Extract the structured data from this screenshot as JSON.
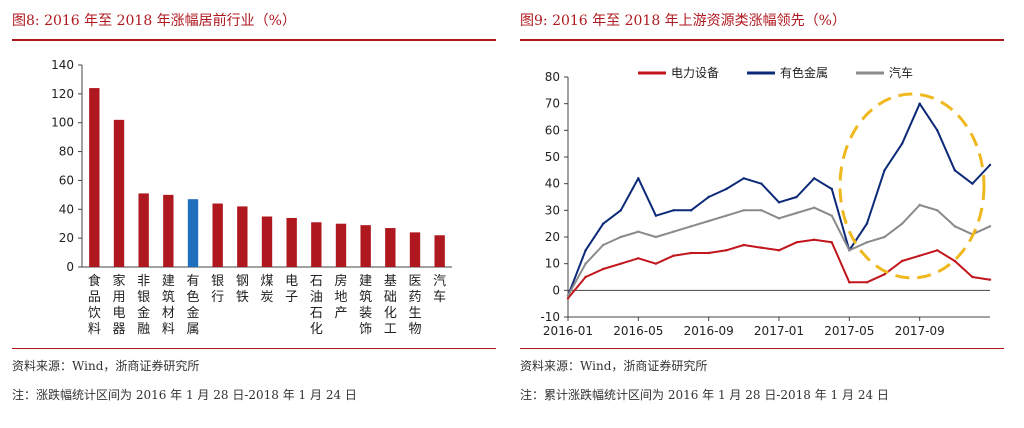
{
  "left": {
    "title": "图8:  2016 年至 2018 年涨幅居前行业（%）",
    "source": "资料来源：Wind，浙商证券研究所",
    "note": "注：涨跌幅统计区间为 2016 年 1 月 28 日-2018 年 1 月 24 日",
    "colors": {
      "bar": "#b0181f",
      "highlight": "#1f6fbf"
    }
  },
  "right": {
    "title": "图9:  2016 年至 2018 年上游资源类涨幅领先（%）",
    "source": "资料来源：Wind，浙商证券研究所",
    "note": "注：累计涨跌幅统计区间为 2016 年 1 月 28 日-2018 年 1 月 24 日",
    "annotation": "dashed-yellow-ellipse-highlight"
  },
  "chart_data": [
    {
      "type": "bar",
      "categories": [
        "食品饮料",
        "家用电器",
        "非银金融",
        "建筑材料",
        "有色金属",
        "银行",
        "钢铁",
        "煤炭",
        "电子",
        "石油石化",
        "房地产",
        "建筑装饰",
        "基础化工",
        "医药生物",
        "汽车"
      ],
      "values": [
        124,
        102,
        51,
        50,
        47,
        44,
        42,
        35,
        34,
        31,
        30,
        29,
        27,
        24,
        22
      ],
      "highlight": "有色金属",
      "ylim": [
        0,
        140
      ],
      "yticks": [
        "0",
        "20",
        "40",
        "60",
        "80",
        "100",
        "120",
        "140"
      ],
      "grid": false,
      "legend": "none"
    },
    {
      "type": "line",
      "x": [
        "2016-01",
        "2016-02",
        "2016-03",
        "2016-04",
        "2016-05",
        "2016-06",
        "2016-07",
        "2016-08",
        "2016-09",
        "2016-10",
        "2016-11",
        "2016-12",
        "2017-01",
        "2017-02",
        "2017-03",
        "2017-04",
        "2017-05",
        "2017-06",
        "2017-07",
        "2017-08",
        "2017-09",
        "2017-10",
        "2017-11",
        "2017-12",
        "2018-01"
      ],
      "xticks": [
        "2016-01",
        "2016-05",
        "2016-09",
        "2017-01",
        "2017-05",
        "2017-09"
      ],
      "series": [
        {
          "name": "电力设备",
          "color": "#c0161c",
          "values": [
            -3,
            5,
            8,
            10,
            12,
            10,
            13,
            14,
            14,
            15,
            17,
            16,
            15,
            18,
            19,
            18,
            3,
            3,
            6,
            11,
            13,
            15,
            11,
            5,
            4
          ]
        },
        {
          "name": "有色金属",
          "color": "#0d2a78",
          "values": [
            -2,
            15,
            25,
            30,
            42,
            28,
            30,
            30,
            35,
            38,
            42,
            40,
            33,
            35,
            42,
            38,
            15,
            25,
            45,
            55,
            70,
            60,
            45,
            40,
            47
          ]
        },
        {
          "name": "汽车",
          "color": "#8a8a8a",
          "values": [
            -2,
            10,
            17,
            20,
            22,
            20,
            22,
            24,
            26,
            28,
            30,
            30,
            27,
            29,
            31,
            28,
            15,
            18,
            20,
            25,
            32,
            30,
            24,
            21,
            24
          ]
        }
      ],
      "ylim": [
        -10,
        80
      ],
      "yticks": [
        "-10",
        "0",
        "10",
        "20",
        "30",
        "40",
        "50",
        "60",
        "70",
        "80"
      ],
      "legend": "top"
    }
  ]
}
